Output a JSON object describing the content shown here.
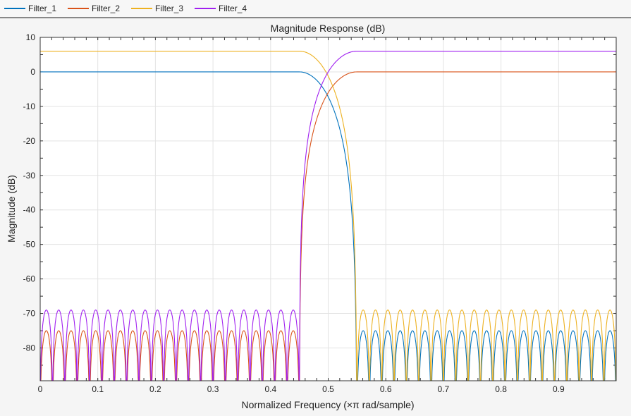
{
  "chart_data": {
    "type": "line",
    "title": "Magnitude Response (dB)",
    "xlabel": "Normalized Frequency (×π rad/sample)",
    "ylabel": "Magnitude (dB)",
    "xlim": [
      0,
      1
    ],
    "ylim": [
      -89.5,
      10
    ],
    "xticks": [
      "0",
      "0.1",
      "0.2",
      "0.3",
      "0.4",
      "0.5",
      "0.6",
      "0.7",
      "0.8",
      "0.9"
    ],
    "yticks": [
      "10",
      "0",
      "-10",
      "-20",
      "-30",
      "-40",
      "-50",
      "-60",
      "-70",
      "-80"
    ],
    "grid": true,
    "legend_position": "top",
    "series": [
      {
        "name": "Filter_1",
        "color": "#0072bd",
        "response": "lowpass",
        "passband_edge": 0.45,
        "stopband_edge": 0.55,
        "passband_gain_db": 0,
        "stopband_peak_db": -75
      },
      {
        "name": "Filter_2",
        "color": "#d95319",
        "response": "highpass",
        "passband_edge": 0.55,
        "stopband_edge": 0.45,
        "passband_gain_db": 0,
        "stopband_peak_db": -75
      },
      {
        "name": "Filter_3",
        "color": "#edb120",
        "response": "lowpass",
        "passband_edge": 0.45,
        "stopband_edge": 0.55,
        "passband_gain_db": 6,
        "stopband_peak_db": -69
      },
      {
        "name": "Filter_4",
        "color": "#7e2f8e",
        "response": "highpass",
        "passband_edge": 0.55,
        "stopband_edge": 0.45,
        "passband_gain_db": 6,
        "stopband_peak_db": -69
      }
    ]
  }
}
